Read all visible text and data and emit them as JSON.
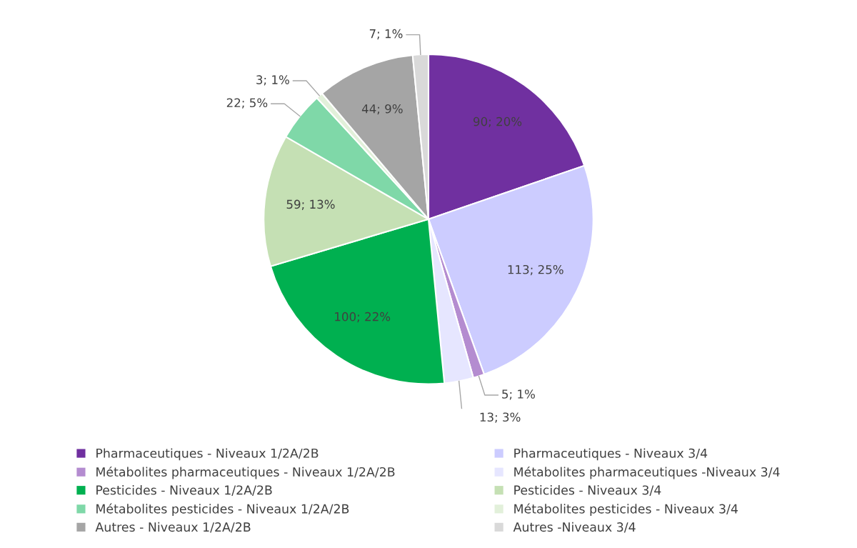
{
  "chart_data": {
    "type": "pie",
    "categories": [
      "Pharmaceutiques - Niveaux 1/2A/2B",
      "Pharmaceutiques - Niveaux 3/4",
      "Métabolites pharmaceutiques - Niveaux 1/2A/2B",
      "Métabolites pharmaceutiques -Niveaux 3/4",
      "Pesticides - Niveaux 1/2A/2B",
      "Pesticides - Niveaux 3/4",
      "Métabolites pesticides - Niveaux 1/2A/2B",
      "Métabolites pesticides - Niveaux 3/4",
      "Autres - Niveaux 1/2A/2B",
      "Autres -Niveaux 3/4"
    ],
    "values": [
      90,
      113,
      5,
      13,
      100,
      59,
      22,
      3,
      44,
      7
    ],
    "colors": [
      "#7030a0",
      "#ccccff",
      "#b48cd0",
      "#e6e6ff",
      "#00b050",
      "#c5e0b4",
      "#7fd8a8",
      "#e2f0da",
      "#a5a5a5",
      "#d9d9d9"
    ],
    "value_labels": [
      "90; 20%",
      "113; 25%",
      "5; 1%",
      "13; 3%",
      "100; 22%",
      "59; 13%",
      "22; 5%",
      "3; 1%",
      "44; 9%",
      "7; 1%"
    ],
    "legend": "bottom"
  }
}
